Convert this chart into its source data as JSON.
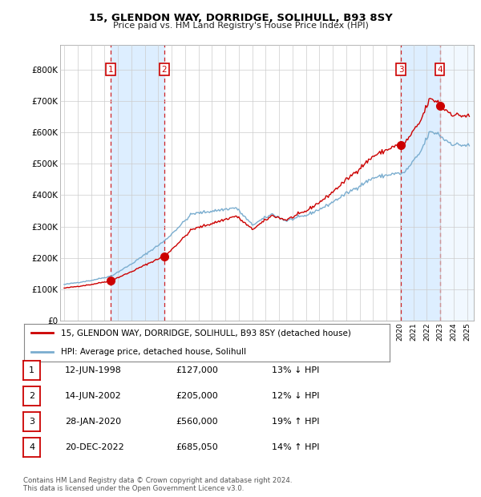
{
  "title": "15, GLENDON WAY, DORRIDGE, SOLIHULL, B93 8SY",
  "subtitle": "Price paid vs. HM Land Registry's House Price Index (HPI)",
  "transactions": [
    {
      "num": 1,
      "date_dec": 1998.4521,
      "price": 127000
    },
    {
      "num": 2,
      "date_dec": 2002.4521,
      "price": 205000
    },
    {
      "num": 3,
      "date_dec": 2020.0767,
      "price": 560000
    },
    {
      "num": 4,
      "date_dec": 2022.9644,
      "price": 685050
    }
  ],
  "legend_line1": "15, GLENDON WAY, DORRIDGE, SOLIHULL, B93 8SY (detached house)",
  "legend_line2": "HPI: Average price, detached house, Solihull",
  "footer1": "Contains HM Land Registry data © Crown copyright and database right 2024.",
  "footer2": "This data is licensed under the Open Government Licence v3.0.",
  "table_rows": [
    {
      "num": 1,
      "date_str": "12-JUN-1998",
      "price_str": "£127,000",
      "hpi_str": "13% ↓ HPI"
    },
    {
      "num": 2,
      "date_str": "14-JUN-2002",
      "price_str": "£205,000",
      "hpi_str": "12% ↓ HPI"
    },
    {
      "num": 3,
      "date_str": "28-JAN-2020",
      "price_str": "£560,000",
      "hpi_str": "19% ↑ HPI"
    },
    {
      "num": 4,
      "date_str": "20-DEC-2022",
      "price_str": "£685,050",
      "hpi_str": "14% ↑ HPI"
    }
  ],
  "red_color": "#cc0000",
  "blue_color": "#7aadcf",
  "shade_color": "#ddeeff",
  "background_color": "#ffffff",
  "ylim": [
    0,
    880000
  ],
  "yticks": [
    0,
    100000,
    200000,
    300000,
    400000,
    500000,
    600000,
    700000,
    800000
  ],
  "ytick_labels": [
    "£0",
    "£100K",
    "£200K",
    "£300K",
    "£400K",
    "£500K",
    "£600K",
    "£700K",
    "£800K"
  ],
  "xstart": 1994.7,
  "xend": 2025.5,
  "hpi_key_points": {
    "1995.0": 115000,
    "1997.0": 128000,
    "1998.5": 142000,
    "2000.0": 180000,
    "2002.5": 255000,
    "2004.5": 340000,
    "2007.8": 360000,
    "2009.0": 305000,
    "2010.5": 340000,
    "2011.5": 318000,
    "2013.0": 335000,
    "2014.5": 365000,
    "2016.0": 405000,
    "2018.0": 455000,
    "2019.5": 468000,
    "2020.3": 470000,
    "2021.5": 535000,
    "2022.2": 600000,
    "2022.8": 598000,
    "2023.3": 578000,
    "2024.0": 562000,
    "2025.2": 558000
  }
}
